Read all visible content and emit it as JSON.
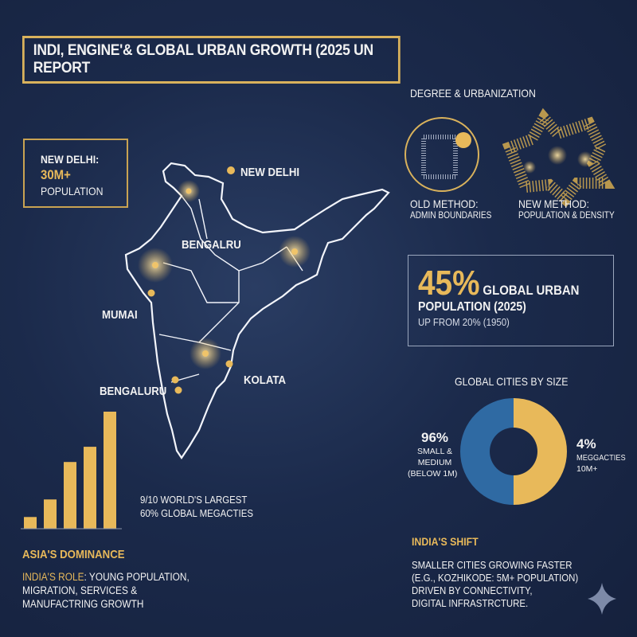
{
  "title": "INDI, ENGINE'& GLOBAL URBAN GROWTH (2025 UN REPORT",
  "delhi_box": {
    "line1": "NEW DELHI:",
    "value": "30M+",
    "line3": "POPULATION"
  },
  "map": {
    "labels": [
      "NEW DELHI",
      "BENGALRU",
      "MUMAI",
      "KOLATA",
      "BENGALURU"
    ]
  },
  "degree": {
    "heading": "DEGREE & URBANIZATION",
    "old_title": "OLD METHOD:",
    "old_sub": "ADMIN BOUNDARIES",
    "new_title": "NEW METHOD:",
    "new_sub": "POPULATION & DENSITY"
  },
  "urban": {
    "value": "45%",
    "line1": "GLOBAL URBAN",
    "line2": "POPULATION (2025)",
    "line3": "UP FROM 20% (1950)"
  },
  "chart_data": [
    {
      "type": "bar",
      "title": "",
      "categories": [
        "1",
        "2",
        "3",
        "4",
        "5"
      ],
      "values": [
        10,
        25,
        57,
        70,
        100
      ],
      "color": "#e8b95a"
    },
    {
      "type": "pie",
      "title": "GLOBAL CITIES BY SIZE",
      "slices": [
        {
          "value": 96,
          "label": "96%",
          "name": "SMALL & MEDIUM (BELOW 1M)",
          "line1": "SMALL &",
          "line2": "MEDIUM",
          "line3": "(BELOW 1M)",
          "color": "#2f6aa3"
        },
        {
          "value": 4,
          "label": "4%",
          "name": "MEGGACTIES 10M+",
          "line1": "MEGGACTIES",
          "line2": "10M+",
          "color": "#e8b95a"
        }
      ]
    }
  ],
  "asia": {
    "stat1": "9/10 WORLD'S LARGEST",
    "stat2": "60% GLOBAL MEGACTIES",
    "heading": "ASIA'S DOMINANCE",
    "role_label": "INDIA'S ROLE",
    "role_text": ": YOUNG POPULATION,",
    "role_l2": "MIGRATION, SERVICES &",
    "role_l3": "MANUFACTRING GROWTH"
  },
  "shift": {
    "heading": "INDIA'S SHIFT",
    "l1": "SMALLER CITIES GROWING FASTER",
    "l2": "(E.G., KOZHIKODE: 5M+ POPULATION)",
    "l3": "DRIVEN BY CONNECTIVITY,",
    "l4": "DIGITAL INFRASTRCTURE."
  },
  "colors": {
    "gold": "#e8b95a",
    "blue": "#2f6aa3",
    "bg": "#1b2a4b"
  },
  "icons": [
    "sparkle-icon"
  ]
}
